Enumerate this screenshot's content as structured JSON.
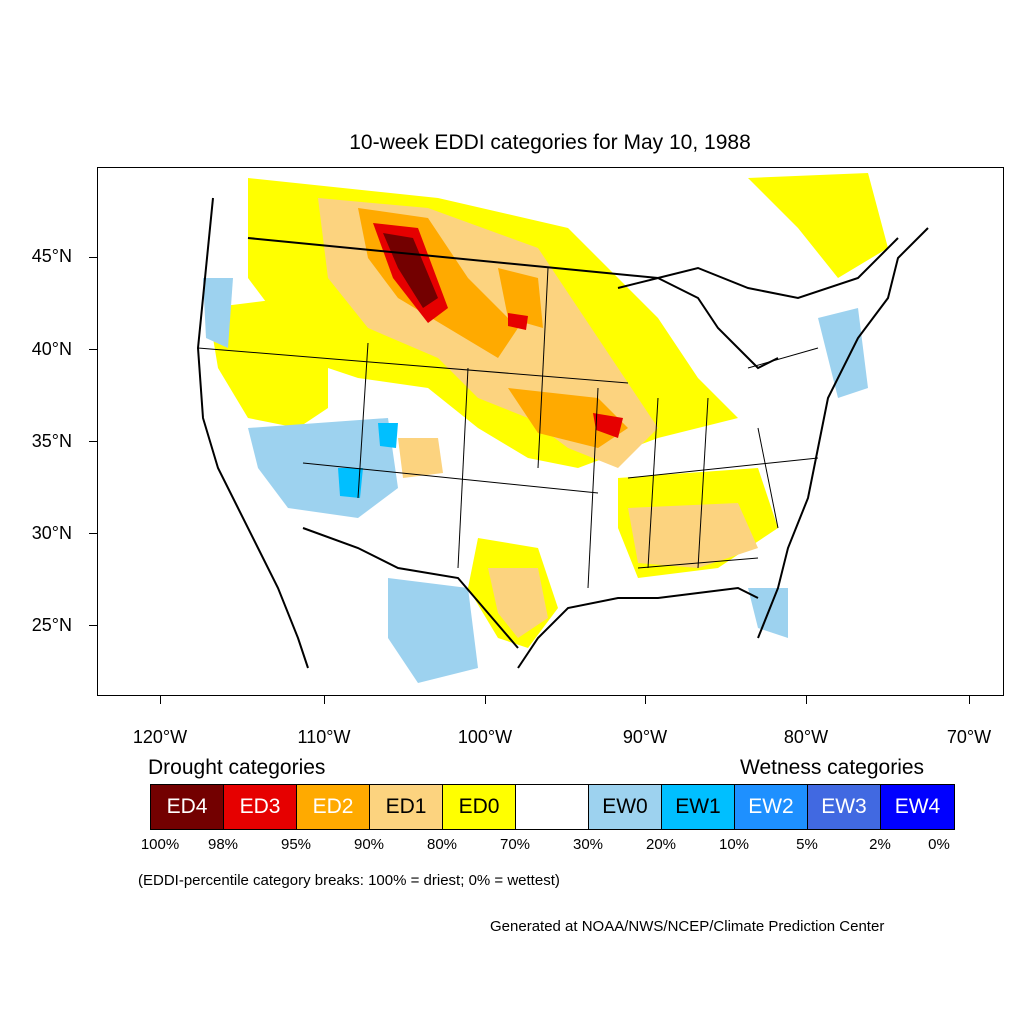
{
  "title": "10-week EDDI categories for May 10, 1988",
  "lat_labels": [
    "45°N",
    "40°N",
    "35°N",
    "30°N",
    "25°N"
  ],
  "lon_labels": [
    "120°W",
    "110°W",
    "100°W",
    "90°W",
    "80°W",
    "70°W"
  ],
  "legend": {
    "drought_heading": "Drought categories",
    "wetness_heading": "Wetness categories",
    "categories": [
      {
        "label": "ED4",
        "color": "#730000",
        "text_color": "#ffffff"
      },
      {
        "label": "ED3",
        "color": "#e60000",
        "text_color": "#ffffff"
      },
      {
        "label": "ED2",
        "color": "#ffaa00",
        "text_color": "#ffffff"
      },
      {
        "label": "ED1",
        "color": "#fcd37f",
        "text_color": "#000000"
      },
      {
        "label": "ED0",
        "color": "#ffff00",
        "text_color": "#000000"
      },
      {
        "label": "",
        "color": "#ffffff",
        "text_color": "#000000"
      },
      {
        "label": "EW0",
        "color": "#9dd2ef",
        "text_color": "#000000"
      },
      {
        "label": "EW1",
        "color": "#00bfff",
        "text_color": "#000000"
      },
      {
        "label": "EW2",
        "color": "#1e90ff",
        "text_color": "#ffffff"
      },
      {
        "label": "EW3",
        "color": "#4169e1",
        "text_color": "#ffffff"
      },
      {
        "label": "EW4",
        "color": "#0000ff",
        "text_color": "#ffffff"
      }
    ],
    "breaks": [
      "100%",
      "98%",
      "95%",
      "90%",
      "80%",
      "70%",
      "30%",
      "20%",
      "10%",
      "5%",
      "2%",
      "0%"
    ]
  },
  "note": "(EDDI-percentile category breaks: 100% = driest; 0% = wettest)",
  "credit": "Generated at NOAA/NWS/NCEP/Climate Prediction Center"
}
